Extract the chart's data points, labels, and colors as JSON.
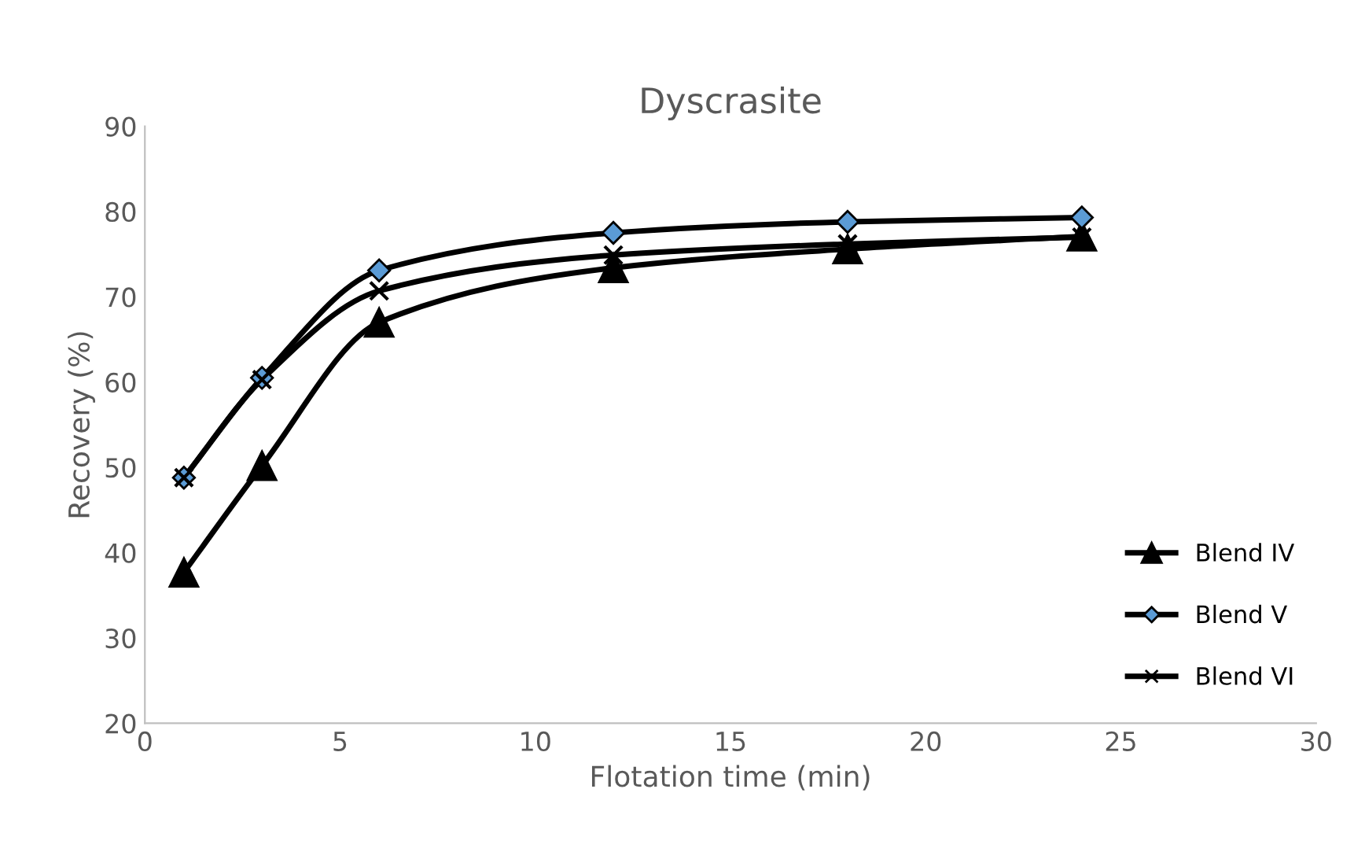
{
  "chart_data": {
    "type": "line",
    "title": "Dyscrasite",
    "xlabel": "Flotation time (min)",
    "ylabel": "Recovery (%)",
    "x": [
      1,
      3,
      6,
      12,
      18,
      24
    ],
    "series": [
      {
        "name": "Blend IV",
        "color": "#000000",
        "marker": "triangle",
        "values": [
          37.7,
          50.2,
          67,
          73.4,
          75.6,
          77.1
        ]
      },
      {
        "name": "Blend V",
        "color": "#000000",
        "marker": "diamond",
        "values": [
          48.8,
          60.5,
          73.1,
          77.5,
          78.8,
          79.3
        ]
      },
      {
        "name": "Blend VI",
        "color": "#000000",
        "marker": "cross",
        "values": [
          48.8,
          60.3,
          70.7,
          74.9,
          76.2,
          77
        ]
      }
    ],
    "xlim": [
      0,
      30
    ],
    "xticks": [
      0,
      5,
      10,
      15,
      20,
      25,
      30
    ],
    "ylim": [
      20,
      90
    ],
    "yticks": [
      20,
      30,
      40,
      50,
      60,
      70,
      80,
      90
    ],
    "grid": false,
    "legend": "right",
    "line_style": "solid"
  }
}
